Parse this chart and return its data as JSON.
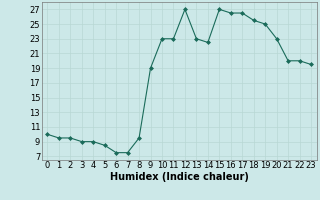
{
  "x": [
    0,
    1,
    2,
    3,
    4,
    5,
    6,
    7,
    8,
    9,
    10,
    11,
    12,
    13,
    14,
    15,
    16,
    17,
    18,
    19,
    20,
    21,
    22,
    23
  ],
  "y": [
    10,
    9.5,
    9.5,
    9,
    9,
    8.5,
    7.5,
    7.5,
    9.5,
    19,
    23,
    23,
    27,
    23,
    22.5,
    27,
    26.5,
    26.5,
    25.5,
    25,
    23,
    20,
    20,
    19.5
  ],
  "line_color": "#1a6b5a",
  "marker_color": "#1a6b5a",
  "bg_color": "#cce8e8",
  "grid_color": "#b8d8d4",
  "xlabel": "Humidex (Indice chaleur)",
  "xlim": [
    -0.5,
    23.5
  ],
  "ylim": [
    6.5,
    28
  ],
  "yticks": [
    7,
    9,
    11,
    13,
    15,
    17,
    19,
    21,
    23,
    25,
    27
  ],
  "xticks": [
    0,
    1,
    2,
    3,
    4,
    5,
    6,
    7,
    8,
    9,
    10,
    11,
    12,
    13,
    14,
    15,
    16,
    17,
    18,
    19,
    20,
    21,
    22,
    23
  ],
  "xlabel_fontsize": 7,
  "tick_fontsize": 6
}
